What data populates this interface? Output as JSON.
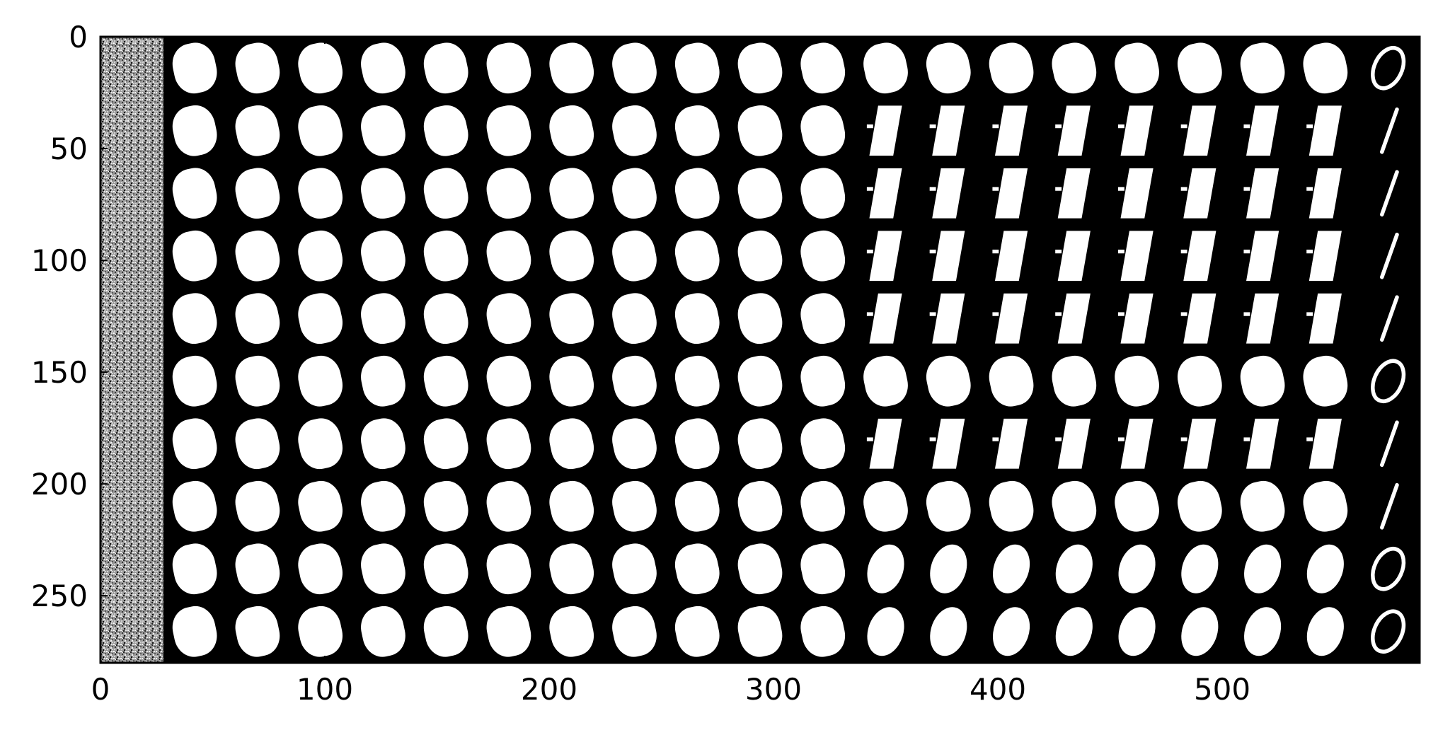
{
  "chart_data": {
    "type": "heatmap",
    "title": "",
    "xlabel": "",
    "ylabel": "",
    "xlim": [
      0,
      588
    ],
    "ylim": [
      280,
      0
    ],
    "xticks": [
      0,
      100,
      200,
      300,
      400,
      500
    ],
    "yticks": [
      0,
      50,
      100,
      150,
      200,
      250
    ],
    "grid": false,
    "colormap": "gray",
    "image_size": [
      280,
      588
    ],
    "tile_size": 28,
    "rows": 10,
    "cols": 21,
    "first_column": "noise",
    "last_column_digits": [
      "0",
      "1",
      "1",
      "1",
      "1",
      "0",
      "1",
      "1",
      "0",
      "0"
    ],
    "blob_shapes_by_row": [
      [
        "round",
        "round",
        "round",
        "round",
        "round",
        "round",
        "round",
        "round",
        "round",
        "round",
        "round",
        "round",
        "round",
        "round",
        "round",
        "round",
        "round",
        "round",
        "round"
      ],
      [
        "round",
        "round",
        "round",
        "round",
        "round",
        "round",
        "round",
        "round",
        "round",
        "round",
        "round",
        "bar",
        "bar",
        "bar",
        "bar",
        "bar",
        "bar",
        "bar",
        "bar"
      ],
      [
        "round",
        "round",
        "round",
        "round",
        "round",
        "round",
        "round",
        "round",
        "round",
        "round",
        "round",
        "bar",
        "bar",
        "bar",
        "bar",
        "bar",
        "bar",
        "bar",
        "bar"
      ],
      [
        "round",
        "round",
        "round",
        "round",
        "round",
        "round",
        "round",
        "round",
        "round",
        "round",
        "round",
        "bar",
        "bar",
        "bar",
        "bar",
        "bar",
        "bar",
        "bar",
        "bar"
      ],
      [
        "round",
        "round",
        "round",
        "round",
        "round",
        "round",
        "round",
        "round",
        "round",
        "round",
        "round",
        "bar",
        "bar",
        "bar",
        "bar",
        "bar",
        "bar",
        "bar",
        "bar"
      ],
      [
        "round",
        "round",
        "round",
        "round",
        "round",
        "round",
        "round",
        "round",
        "round",
        "round",
        "round",
        "round",
        "round",
        "round",
        "round",
        "round",
        "round",
        "round",
        "round"
      ],
      [
        "round",
        "round",
        "round",
        "round",
        "round",
        "round",
        "round",
        "round",
        "round",
        "round",
        "round",
        "bar",
        "bar",
        "bar",
        "bar",
        "bar",
        "bar",
        "bar",
        "bar"
      ],
      [
        "round",
        "round",
        "round",
        "round",
        "round",
        "round",
        "round",
        "round",
        "round",
        "round",
        "round",
        "round",
        "round",
        "round",
        "round",
        "round",
        "round",
        "round",
        "round"
      ],
      [
        "round",
        "round",
        "round",
        "round",
        "round",
        "round",
        "round",
        "round",
        "round",
        "round",
        "round",
        "oval",
        "oval",
        "oval",
        "oval",
        "oval",
        "oval",
        "oval",
        "oval"
      ],
      [
        "round",
        "round",
        "round",
        "round",
        "round",
        "round",
        "round",
        "round",
        "round",
        "round",
        "round",
        "oval",
        "oval",
        "oval",
        "oval",
        "oval",
        "oval",
        "oval",
        "oval"
      ]
    ],
    "colors": {
      "background": "#000000",
      "foreground": "#ffffff",
      "axes": "#000000"
    }
  }
}
